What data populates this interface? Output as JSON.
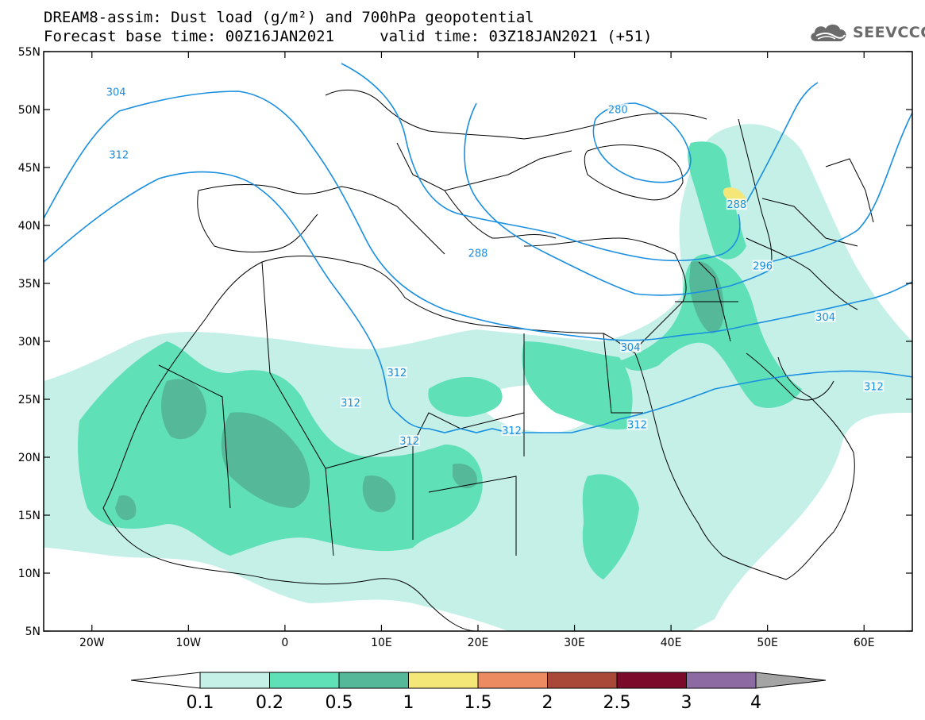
{
  "title": {
    "line1": "DREAM8-assim: Dust load (g/m²) and 700hPa geopotential",
    "line2": "Forecast base time: 00Z16JAN2021     valid time: 03Z18JAN2021 (+51)"
  },
  "logo": {
    "text": "SEEVCCC",
    "icon": "cloud-icon"
  },
  "map": {
    "lat_ticks": [
      "55N",
      "50N",
      "45N",
      "40N",
      "35N",
      "30N",
      "25N",
      "20N",
      "15N",
      "10N",
      "5N"
    ],
    "lon_ticks": [
      "20W",
      "10W",
      "0",
      "10E",
      "20E",
      "30E",
      "40E",
      "50E",
      "60E"
    ],
    "lat_range": [
      5,
      55
    ],
    "lon_range": [
      -25,
      65
    ],
    "contour_labels": [
      {
        "text": "304",
        "lon": -17.5,
        "lat": 51.4
      },
      {
        "text": "312",
        "lon": -17.2,
        "lat": 46.0
      },
      {
        "text": "280",
        "lon": 34.5,
        "lat": 49.9
      },
      {
        "text": "288",
        "lon": 46.8,
        "lat": 41.7
      },
      {
        "text": "288",
        "lon": 20.0,
        "lat": 37.5
      },
      {
        "text": "296",
        "lon": 49.5,
        "lat": 36.4
      },
      {
        "text": "304",
        "lon": 56.0,
        "lat": 32.0
      },
      {
        "text": "304",
        "lon": 35.8,
        "lat": 29.4
      },
      {
        "text": "312",
        "lon": 11.6,
        "lat": 27.2
      },
      {
        "text": "312",
        "lon": 6.8,
        "lat": 24.6
      },
      {
        "text": "312",
        "lon": 12.9,
        "lat": 21.3
      },
      {
        "text": "312",
        "lon": 23.5,
        "lat": 22.2
      },
      {
        "text": "312",
        "lon": 36.5,
        "lat": 22.7
      },
      {
        "text": "312",
        "lon": 61.0,
        "lat": 26.0
      }
    ],
    "colors": {
      "c1": "#c4f0e8",
      "c2": "#5fe0b7",
      "c3": "#55b898",
      "c4": "#f5e678",
      "contour": "#1a8fe0"
    }
  },
  "colorbar": {
    "labels": [
      "0.1",
      "0.2",
      "0.5",
      "1",
      "1.5",
      "2",
      "2.5",
      "3",
      "4"
    ],
    "colors": [
      "#c4f0e8",
      "#5fe0b7",
      "#55b898",
      "#f5e678",
      "#ec8a62",
      "#a94838",
      "#7b0a2a",
      "#8e6aa2"
    ],
    "under_color": "#ffffff",
    "over_color": "#a4a4a4"
  }
}
